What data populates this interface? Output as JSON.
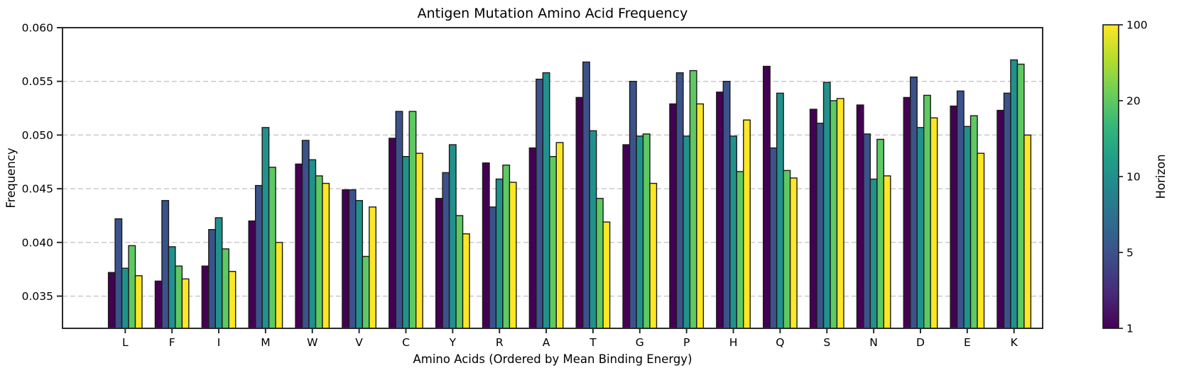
{
  "title": "Antigen Mutation Amino Acid Frequency",
  "chart_data": {
    "type": "bar",
    "title": "Antigen Mutation Amino Acid Frequency",
    "xlabel": "Amino Acids (Ordered by Mean Binding Energy)",
    "ylabel": "Frequency",
    "ylim": [
      0.032,
      0.06
    ],
    "yticks": [
      0.035,
      0.04,
      0.045,
      0.05,
      0.055,
      0.06
    ],
    "grid": true,
    "grid_color": "#c9c9c9",
    "categories": [
      "L",
      "F",
      "I",
      "M",
      "W",
      "V",
      "C",
      "Y",
      "R",
      "A",
      "T",
      "G",
      "P",
      "H",
      "Q",
      "S",
      "N",
      "D",
      "E",
      "K"
    ],
    "series": [
      {
        "name": "1",
        "color": "#440154",
        "values": [
          0.0372,
          0.0364,
          0.0378,
          0.042,
          0.0473,
          0.0449,
          0.0497,
          0.0441,
          0.0474,
          0.0488,
          0.0535,
          0.0491,
          0.0529,
          0.054,
          0.0564,
          0.0524,
          0.0528,
          0.0535,
          0.0527,
          0.0523
        ]
      },
      {
        "name": "5",
        "color": "#3b528b",
        "values": [
          0.0422,
          0.0439,
          0.0412,
          0.0453,
          0.0495,
          0.0449,
          0.0522,
          0.0465,
          0.0433,
          0.0552,
          0.0568,
          0.055,
          0.0558,
          0.055,
          0.0488,
          0.0511,
          0.0501,
          0.0554,
          0.0541,
          0.0539
        ]
      },
      {
        "name": "10",
        "color": "#21918c",
        "values": [
          0.0376,
          0.0396,
          0.0423,
          0.0507,
          0.0477,
          0.0439,
          0.048,
          0.0491,
          0.0459,
          0.0558,
          0.0504,
          0.0499,
          0.0499,
          0.0499,
          0.0539,
          0.0549,
          0.0459,
          0.0507,
          0.0508,
          0.057
        ]
      },
      {
        "name": "20",
        "color": "#5ec962",
        "values": [
          0.0397,
          0.0378,
          0.0394,
          0.047,
          0.0462,
          0.0387,
          0.0522,
          0.0425,
          0.0472,
          0.048,
          0.0441,
          0.0501,
          0.056,
          0.0466,
          0.0467,
          0.0532,
          0.0496,
          0.0537,
          0.0518,
          0.0566
        ]
      },
      {
        "name": "100",
        "color": "#fde725",
        "values": [
          0.0369,
          0.0366,
          0.0373,
          0.04,
          0.0455,
          0.0433,
          0.0483,
          0.0408,
          0.0456,
          0.0493,
          0.0419,
          0.0455,
          0.0529,
          0.0514,
          0.046,
          0.0534,
          0.0462,
          0.0516,
          0.0483,
          0.05
        ]
      }
    ],
    "colorbar": {
      "label": "Horizon",
      "ticks": [
        "1",
        "5",
        "10",
        "20",
        "100"
      ],
      "gradient_stops": [
        "#440154",
        "#482878",
        "#3e4a89",
        "#31688e",
        "#26828e",
        "#1f9e89",
        "#35b779",
        "#6ece58",
        "#b5de2b",
        "#fde725"
      ]
    },
    "legend_position": "right-colorbar",
    "bar_edge_color": "#1a1a1a",
    "spine_color": "#2b2b2b"
  }
}
